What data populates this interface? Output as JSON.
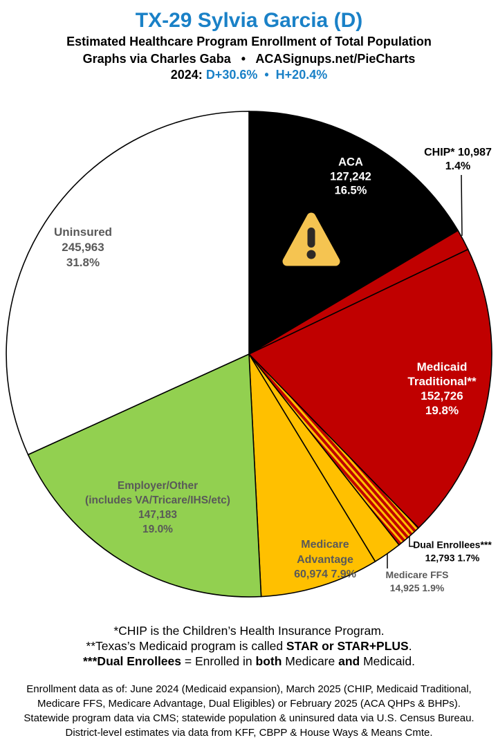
{
  "header": {
    "title": "TX-29 Sylvia Garcia (D)",
    "subtitle": "Estimated Healthcare Program Enrollment of Total Population",
    "credit": "Graphs via Charles Gaba   •   ACASignups.net/PieCharts",
    "lean_runs": [
      {
        "t": "2024: ",
        "c": "#000000"
      },
      {
        "t": "D+30.6%  •  H+20.4%",
        "c": "#1A81C7"
      }
    ]
  },
  "chart_data": {
    "type": "pie",
    "title": "Estimated Healthcare Program Enrollment of Total Population",
    "units": "people",
    "start_angle": "12 o'clock, clockwise",
    "slices": [
      {
        "id": "aca",
        "label": "ACA",
        "value": 127242,
        "pct": 16.5,
        "color": "#000000",
        "hatch": false
      },
      {
        "id": "chip",
        "label": "CHIP*",
        "value": 10987,
        "pct": 1.4,
        "color": "#C00000",
        "hatch": false
      },
      {
        "id": "medicaid-traditional",
        "label": "Medicaid Traditional**",
        "value": 152726,
        "pct": 19.8,
        "color": "#C00000",
        "hatch": false
      },
      {
        "id": "dual-enrollees",
        "label": "Dual Enrollees***",
        "value": 12793,
        "pct": 1.7,
        "color": "hatch",
        "hatch": true
      },
      {
        "id": "medicare-ffs",
        "label": "Medicare FFS",
        "value": 14925,
        "pct": 1.9,
        "color": "#FFC000",
        "hatch": false
      },
      {
        "id": "medicare-advantage",
        "label": "Medicare Advantage",
        "value": 60974,
        "pct": 7.9,
        "color": "#FFC000",
        "hatch": false
      },
      {
        "id": "employer-other",
        "label": "Employer/Other (includes VA/Tricare/IHS/etc)",
        "value": 147183,
        "pct": 19.0,
        "color": "#92D050",
        "hatch": false
      },
      {
        "id": "uninsured",
        "label": "Uninsured",
        "value": 245963,
        "pct": 31.8,
        "color": "#FFFFFF",
        "hatch": false
      }
    ],
    "hatch_colors": {
      "bg": "#C00000",
      "stripe": "#FFC000"
    },
    "legend": "labels drawn on/next to slices"
  },
  "slice_labels": {
    "aca": [
      "ACA",
      "127,242",
      "16.5%"
    ],
    "chip": [
      "CHIP* 10,987",
      "1.4%"
    ],
    "medicaid": [
      "Medicaid",
      "Traditional**",
      "152,726",
      "19.8%"
    ],
    "dual": [
      "Dual Enrollees***",
      "12,793 1.7%"
    ],
    "ffs": [
      "Medicare FFS",
      "14,925 1.9%"
    ],
    "advantage": [
      "Medicare",
      "Advantage",
      "60,974 7.9%"
    ],
    "employer": [
      "Employer/Other",
      "(includes VA/Tricare/IHS/etc)",
      "147,183",
      "19.0%"
    ],
    "uninsured": [
      "Uninsured",
      "245,963",
      "31.8%"
    ]
  },
  "footnotes": {
    "line1_runs": [
      {
        "t": "*CHIP is the Children’s Health Insurance Program."
      }
    ],
    "line2_runs": [
      {
        "t": "**Texas’s Medicaid program is called "
      },
      {
        "t": "STAR or STAR+PLUS",
        "b": true
      },
      {
        "t": "."
      }
    ],
    "line3_runs": [
      {
        "t": "***Dual Enrollees",
        "b": true
      },
      {
        "t": " = Enrolled in "
      },
      {
        "t": "both",
        "b": true
      },
      {
        "t": " Medicare "
      },
      {
        "t": "and",
        "b": true
      },
      {
        "t": " Medicaid."
      }
    ]
  },
  "source_lines": [
    "Enrollment data as of: June 2024 (Medicaid expansion), March 2025 (CHIP, Medicaid Traditional,",
    "Medicare FFS, Medicare Advantage, Dual Eligibles) or February 2025 (ACA QHPs & BHPs).",
    "Statewide program data via CMS; statewide population & uninsured data via U.S. Census Bureau.",
    "District-level estimates via data from KFF, CBPP & House Ways & Means Cmte."
  ],
  "colors": {
    "blue": "#1A81C7",
    "gray": "#595959",
    "red": "#C00000",
    "amber": "#FFC000",
    "green": "#92D050",
    "warn_amber": "#F5C451",
    "warn_dark": "#2E2A26"
  }
}
